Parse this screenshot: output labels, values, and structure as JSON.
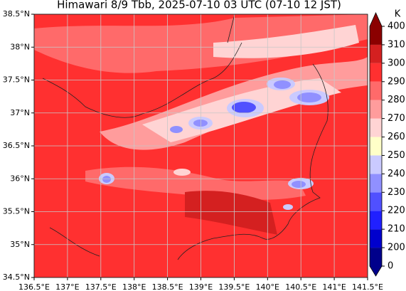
{
  "title": "Himawari 8/9 Tbb, 2025-07-10 03 UTC (07-10 12 JST)",
  "map": {
    "xlim": [
      136.5,
      141.5
    ],
    "ylim": [
      34.5,
      38.5
    ],
    "xticks": [
      {
        "value": 136.5,
        "label": "136.5°E"
      },
      {
        "value": 137,
        "label": "137°E"
      },
      {
        "value": 137.5,
        "label": "137.5°E"
      },
      {
        "value": 138,
        "label": "138°E"
      },
      {
        "value": 138.5,
        "label": "138.5°E"
      },
      {
        "value": 139,
        "label": "139°E"
      },
      {
        "value": 139.5,
        "label": "139.5°E"
      },
      {
        "value": 140,
        "label": "140°E"
      },
      {
        "value": 140.5,
        "label": "140.5°E"
      },
      {
        "value": 141,
        "label": "141°E"
      },
      {
        "value": 141.5,
        "label": "141.5°E"
      }
    ],
    "yticks": [
      {
        "value": 34.5,
        "label": "34.5°N"
      },
      {
        "value": 35,
        "label": "35°N"
      },
      {
        "value": 35.5,
        "label": "35.5°N"
      },
      {
        "value": 36,
        "label": "36°N"
      },
      {
        "value": 36.5,
        "label": "36.5°N"
      },
      {
        "value": 37,
        "label": "37°N"
      },
      {
        "value": 37.5,
        "label": "37.5°N"
      },
      {
        "value": 38,
        "label": "38°N"
      },
      {
        "value": 38.5,
        "label": "38.5°N"
      }
    ],
    "grid": true
  },
  "colorbar": {
    "unit": "K",
    "levels": [
      0,
      200,
      210,
      220,
      230,
      240,
      250,
      260,
      270,
      280,
      290,
      300,
      310,
      400
    ],
    "colors": [
      "#00008b",
      "#0000cd",
      "#2020ff",
      "#5050ff",
      "#9090ff",
      "#cacaff",
      "#ffffc8",
      "#ffd4d4",
      "#ff9c9c",
      "#ff6a6a",
      "#ff3030",
      "#d42020",
      "#8b0000"
    ]
  }
}
